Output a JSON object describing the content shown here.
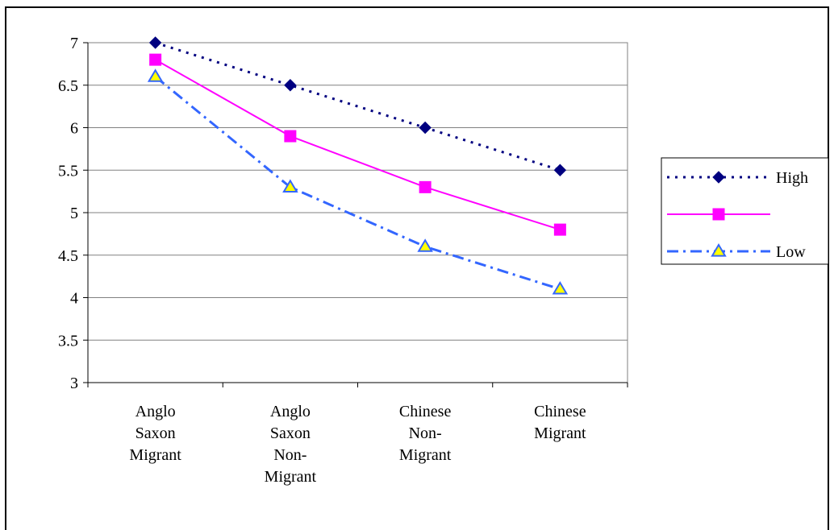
{
  "chart_data": {
    "type": "line",
    "categories": [
      [
        "Anglo",
        "Saxon",
        "Migrant"
      ],
      [
        "Anglo",
        "Saxon",
        "Non-",
        "Migrant"
      ],
      [
        "Chinese",
        "Non-",
        "Migrant"
      ],
      [
        "Chinese",
        "Migrant"
      ]
    ],
    "series": [
      {
        "name": "High",
        "values": [
          7.0,
          6.5,
          6.0,
          5.5
        ],
        "color": "#000080",
        "marker": "diamond",
        "dash": "dot"
      },
      {
        "name": "",
        "values": [
          6.8,
          5.9,
          5.3,
          4.8
        ],
        "color": "#ff00ff",
        "marker": "square",
        "dash": "solid"
      },
      {
        "name": "Low",
        "values": [
          6.6,
          5.3,
          4.6,
          4.1
        ],
        "color": "#3366ff",
        "marker": "triangle",
        "dash": "dashdot",
        "marker_fill": "#ffff00"
      }
    ],
    "yticks": [
      "3",
      "3.5",
      "4",
      "4.5",
      "5",
      "5.5",
      "6",
      "6.5",
      "7"
    ],
    "ylim": [
      3,
      7
    ],
    "grid": true,
    "legend": "right",
    "title": "",
    "xlabel": "",
    "ylabel": ""
  }
}
